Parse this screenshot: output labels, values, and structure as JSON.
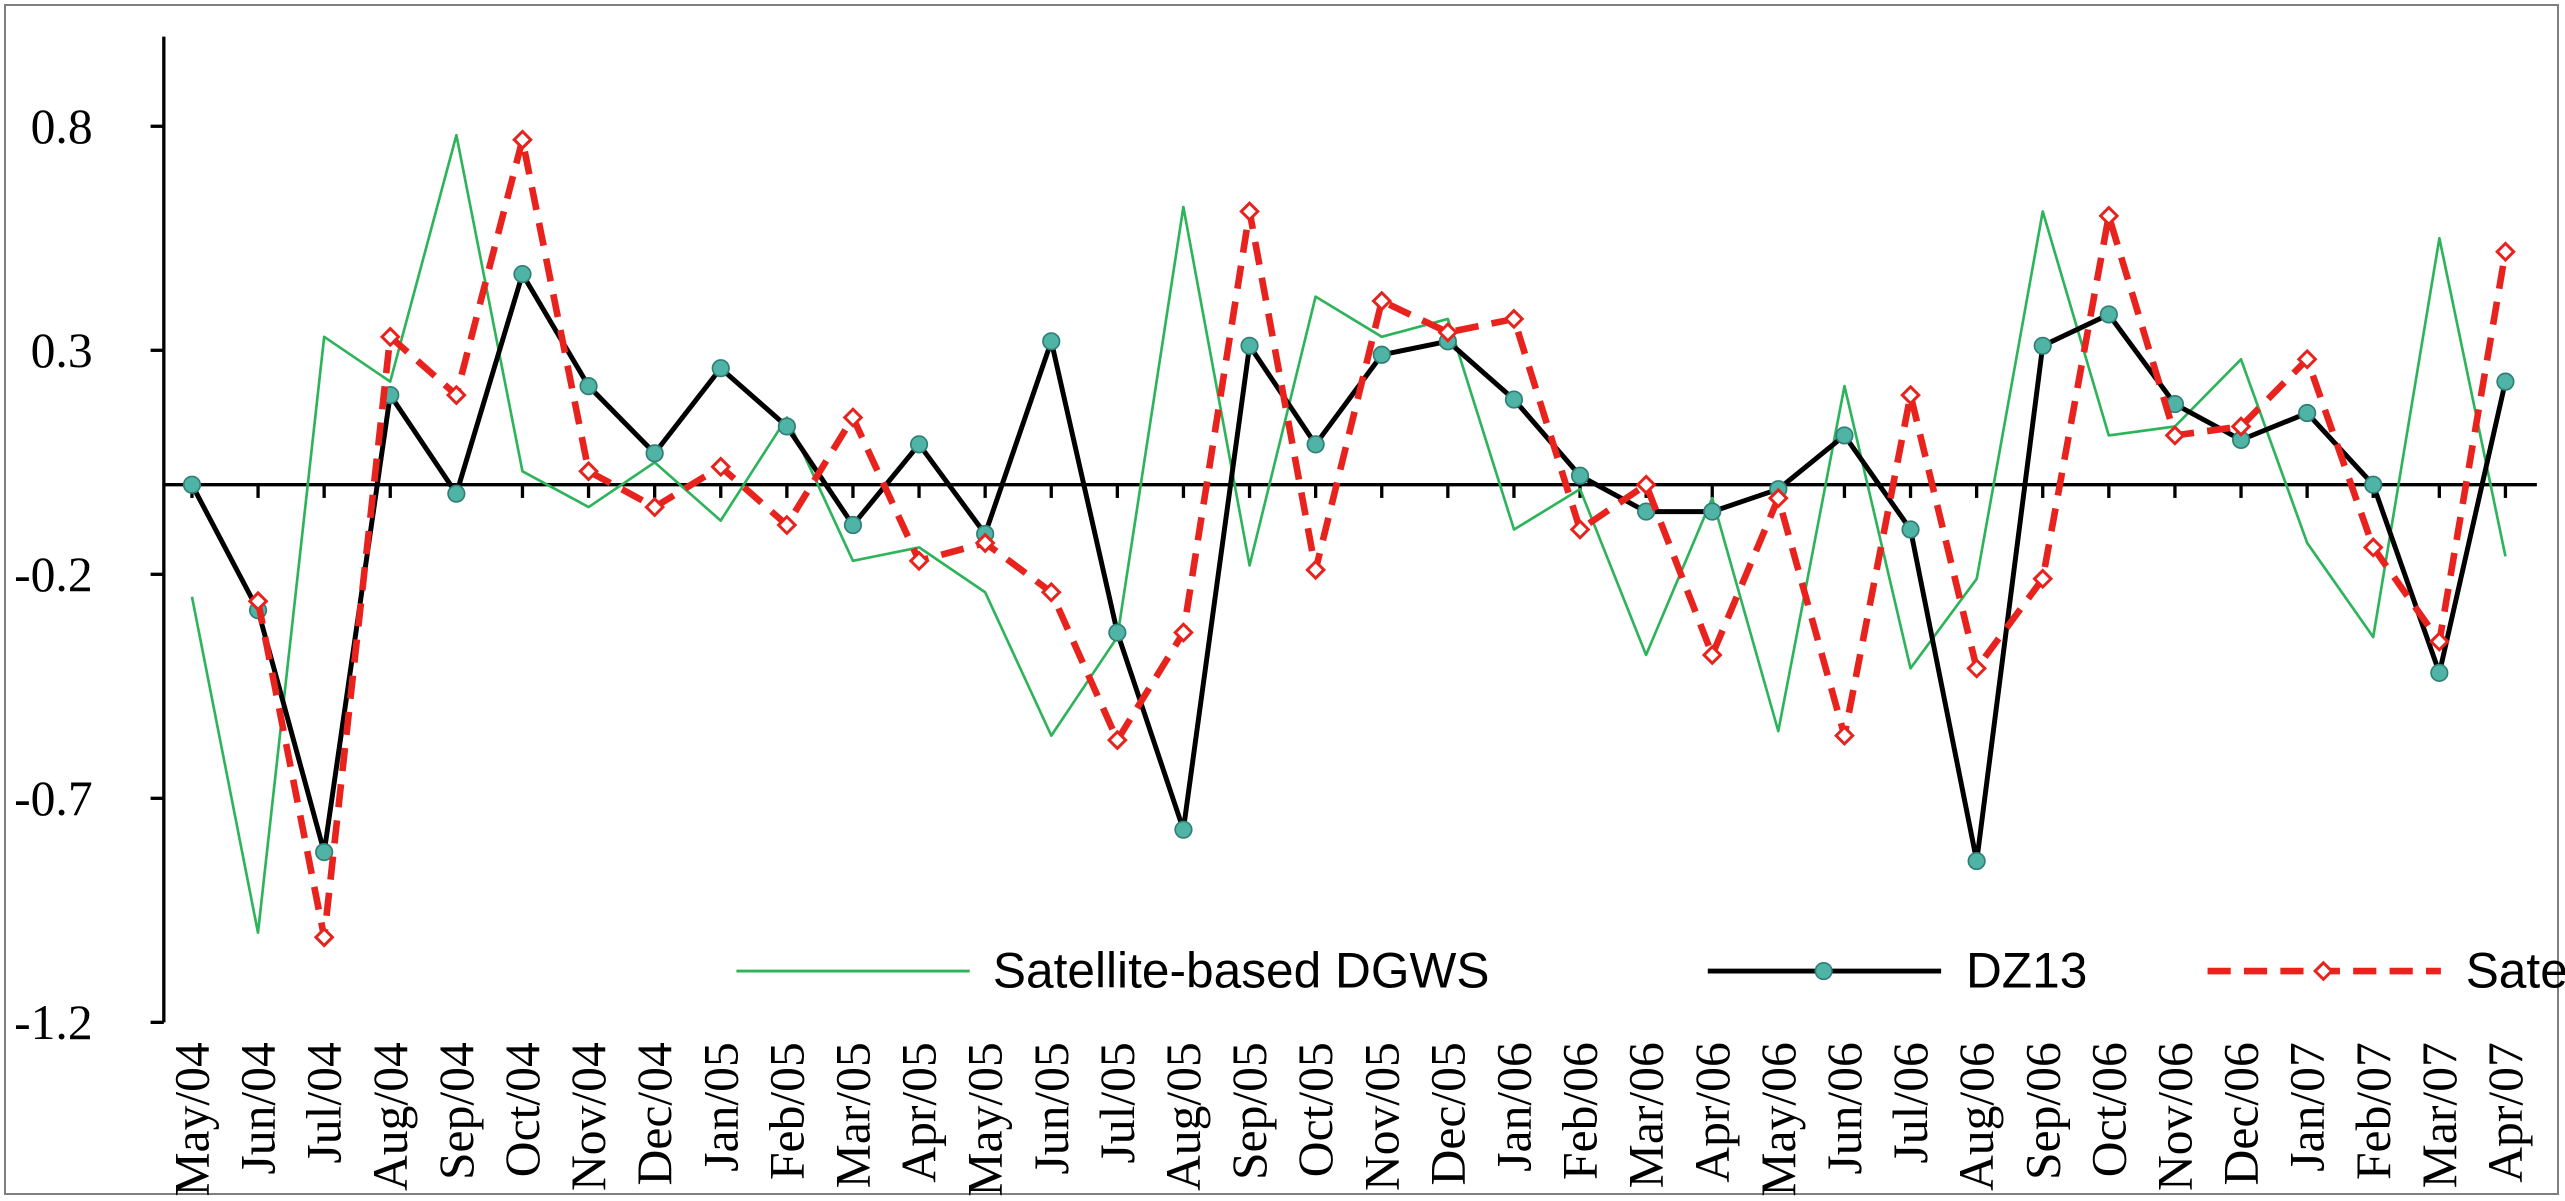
{
  "chart_data": {
    "type": "line",
    "title": "",
    "xlabel": "",
    "ylabel": "",
    "ylim": [
      -1.2,
      1.0
    ],
    "yticks": [
      0.8,
      0.3,
      -0.2,
      -0.7,
      -1.2
    ],
    "ytick_labels": [
      "0.8",
      "0.3",
      "-0.2",
      "-0.7",
      "-1.2"
    ],
    "grid": false,
    "legend_position": "bottom-center",
    "categories": [
      "May/04",
      "Jun/04",
      "Jul/04",
      "Aug/04",
      "Sep/04",
      "Oct/04",
      "Nov/04",
      "Dec/04",
      "Jan/05",
      "Feb/05",
      "Mar/05",
      "Apr/05",
      "May/05",
      "Jun/05",
      "Jul/05",
      "Aug/05",
      "Sep/05",
      "Oct/05",
      "Nov/05",
      "Dec/05",
      "Jan/06",
      "Feb/06",
      "Mar/06",
      "Apr/06",
      "May/06",
      "Jun/06",
      "Jul/06",
      "Aug/06",
      "Sep/06",
      "Oct/06",
      "Nov/06",
      "Dec/06",
      "Jan/07",
      "Feb/07",
      "Mar/07",
      "Apr/07"
    ],
    "series": [
      {
        "name": "Satellite-based DGWS",
        "color": "#2db45a",
        "style": "solid-thin",
        "marker": "none",
        "values": [
          -0.25,
          -1.0,
          0.33,
          0.23,
          0.78,
          0.03,
          -0.05,
          0.05,
          -0.08,
          0.15,
          -0.17,
          -0.14,
          -0.24,
          -0.56,
          -0.34,
          0.62,
          -0.18,
          0.42,
          0.33,
          0.37,
          -0.1,
          -0.01,
          -0.38,
          -0.03,
          -0.55,
          0.22,
          -0.41,
          -0.21,
          0.61,
          0.11,
          0.13,
          0.28,
          -0.13,
          -0.34,
          0.55,
          -0.16
        ]
      },
      {
        "name": "DZ13",
        "color": "#000000",
        "style": "solid",
        "marker": "circle",
        "marker_color": "#4fb3a6",
        "values": [
          0.0,
          -0.28,
          -0.82,
          0.2,
          -0.02,
          0.47,
          0.22,
          0.07,
          0.26,
          0.13,
          -0.09,
          0.09,
          -0.11,
          0.32,
          -0.33,
          -0.77,
          0.31,
          0.09,
          0.29,
          0.32,
          0.19,
          0.02,
          -0.06,
          -0.06,
          -0.01,
          0.11,
          -0.1,
          -0.84,
          0.31,
          0.38,
          0.18,
          0.1,
          0.16,
          0.0,
          -0.42,
          0.23
        ]
      },
      {
        "name": "Satellite-based DGWS delayed by one month",
        "color": "#e8231e",
        "style": "dashed",
        "marker": "diamond",
        "values": [
          null,
          -0.26,
          -1.01,
          0.33,
          0.2,
          0.77,
          0.03,
          -0.05,
          0.04,
          -0.09,
          0.15,
          -0.17,
          -0.13,
          -0.24,
          -0.57,
          -0.33,
          0.61,
          -0.19,
          0.41,
          0.34,
          0.37,
          -0.1,
          0.0,
          -0.38,
          -0.03,
          -0.56,
          0.2,
          -0.41,
          -0.21,
          0.6,
          0.11,
          0.13,
          0.28,
          -0.14,
          -0.35,
          0.52
        ]
      }
    ]
  }
}
